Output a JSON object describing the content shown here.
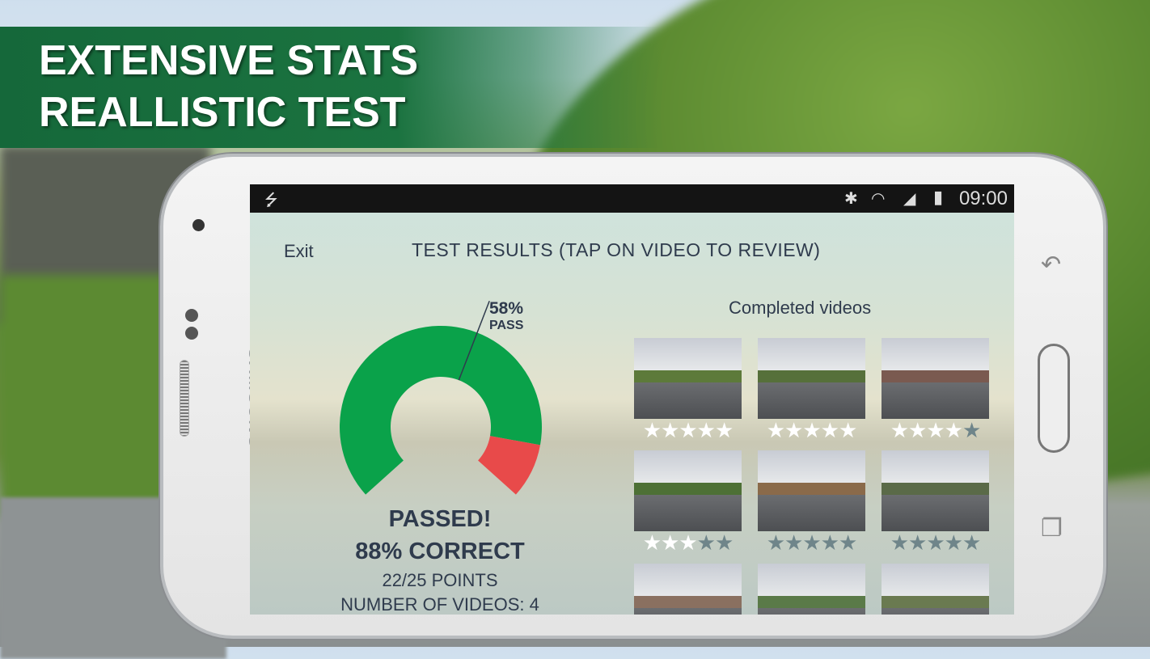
{
  "banner": {
    "line1": "EXTENSIVE STATS",
    "line2": "REALLISTIC TEST"
  },
  "phone": {
    "brand": "SAMSUNG"
  },
  "status_bar": {
    "time": "09:00",
    "icons": [
      "usb-icon",
      "bluetooth-icon",
      "wifi-icon",
      "signal-icon",
      "battery-icon"
    ]
  },
  "header": {
    "exit_label": "Exit",
    "title": "TEST RESULTS (TAP ON VIDEO TO REVIEW)"
  },
  "gauge": {
    "pass_mark_label": "58%",
    "pass_label": "PASS",
    "pass_threshold_percent": 58,
    "correct_percent": 88,
    "colors": {
      "correct": "#0aa24a",
      "incorrect": "#e84a4a",
      "marker": "#2f3b4d"
    }
  },
  "results": {
    "status": "PASSED!",
    "correct": "88% CORRECT",
    "points": "22/25 POINTS",
    "videos": "NUMBER OF VIDEOS: 4"
  },
  "videos": {
    "heading": "Completed videos",
    "items": [
      {
        "stars": 5
      },
      {
        "stars": 5
      },
      {
        "stars": 4
      },
      {
        "stars": 3
      },
      {
        "stars": 0
      },
      {
        "stars": 0
      },
      {
        "stars": null
      },
      {
        "stars": null
      },
      {
        "stars": null
      }
    ],
    "max_stars": 5
  }
}
